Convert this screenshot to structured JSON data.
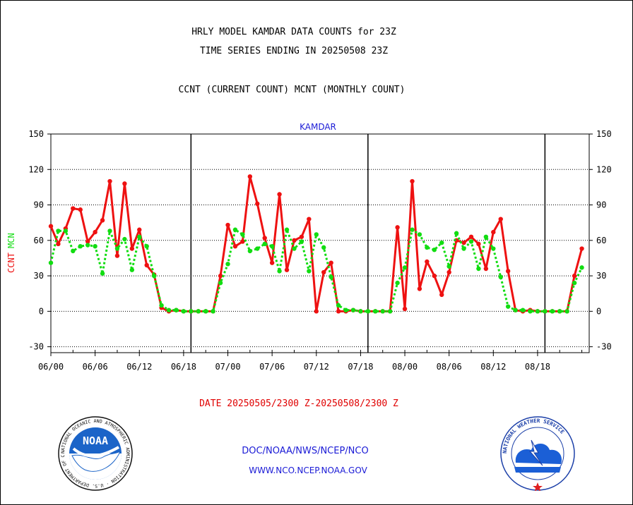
{
  "header": {
    "title_line1": "HRLY MODEL KAMDAR DATA COUNTS for 23Z",
    "title_line2": "TIME SERIES ENDING IN 20250508 23Z",
    "legend_line": "CCNT (CURRENT COUNT) MCNT (MONTHLY COUNT)"
  },
  "footer": {
    "date_range": "DATE 20250505/2300 Z-20250508/2300 Z",
    "org_path": "DOC/NOAA/NWS/NCEP/NCO",
    "website": "WWW.NCO.NCEP.NOAA.GOV"
  },
  "logos": {
    "noaa_text": "NOAA",
    "noaa_ring": "NATIONAL OCEANIC AND ATMOSPHERIC ADMINISTRATION · U.S. DEPARTMENT OF COMMERCE",
    "nws_ring": "NATIONAL WEATHER SERVICE"
  },
  "colors": {
    "ccnt": "#ee1111",
    "mcnt": "#11dd11",
    "station": "#1a1ad6",
    "axis": "#000000"
  },
  "chart_data": {
    "type": "line",
    "station_label": "KAMDAR",
    "ylabel_ccnt": "CCNT",
    "ylabel_mcnt": "MCNT",
    "ylim": [
      -35,
      150
    ],
    "yticks": [
      -30,
      0,
      30,
      60,
      90,
      120,
      150
    ],
    "grid": true,
    "xlim": [
      0,
      73
    ],
    "x_tick_labels": [
      "06/00",
      "06/06",
      "06/12",
      "06/18",
      "07/00",
      "07/06",
      "07/12",
      "07/18",
      "08/00",
      "08/06",
      "08/12",
      "08/18"
    ],
    "x_tick_hours": [
      0,
      6,
      12,
      18,
      24,
      30,
      36,
      42,
      48,
      54,
      60,
      66
    ],
    "day_boundaries": [
      19,
      43,
      67
    ],
    "x_hours": [
      0,
      1,
      2,
      3,
      4,
      5,
      6,
      7,
      8,
      9,
      10,
      11,
      12,
      13,
      14,
      15,
      16,
      17,
      18,
      19,
      20,
      21,
      22,
      23,
      24,
      25,
      26,
      27,
      28,
      29,
      30,
      31,
      32,
      33,
      34,
      35,
      36,
      37,
      38,
      39,
      40,
      41,
      42,
      43,
      44,
      45,
      46,
      47,
      48,
      49,
      50,
      51,
      52,
      53,
      54,
      55,
      56,
      57,
      58,
      59,
      60,
      61,
      62,
      63,
      64,
      65,
      66,
      67,
      68,
      69,
      70,
      71,
      72
    ],
    "series": [
      {
        "name": "CCNT",
        "values": [
          72,
          57,
          70,
          87,
          86,
          59,
          67,
          77,
          110,
          47,
          108,
          53,
          69,
          39,
          31,
          3,
          0,
          1,
          0,
          0,
          0,
          0,
          0,
          30,
          73,
          55,
          59,
          114,
          91,
          62,
          41,
          99,
          35,
          60,
          63,
          78,
          0,
          33,
          41,
          0,
          0,
          1,
          0,
          0,
          0,
          0,
          0,
          71,
          2,
          110,
          19,
          42,
          30,
          14,
          33,
          60,
          58,
          63,
          57,
          36,
          67,
          78,
          34,
          1,
          0,
          1,
          0,
          0,
          0,
          0,
          0,
          30,
          53
        ]
      },
      {
        "name": "MCNT",
        "values": [
          41,
          68,
          68,
          51,
          55,
          56,
          55,
          32,
          68,
          53,
          61,
          35,
          63,
          55,
          30,
          5,
          1,
          1,
          0,
          0,
          0,
          0,
          0,
          24,
          40,
          69,
          65,
          51,
          53,
          57,
          55,
          34,
          69,
          53,
          59,
          34,
          65,
          54,
          29,
          5,
          1,
          1,
          0,
          0,
          0,
          0,
          0,
          24,
          37,
          69,
          65,
          54,
          52,
          58,
          38,
          66,
          53,
          59,
          36,
          63,
          53,
          29,
          4,
          1,
          1,
          0,
          0,
          0,
          0,
          0,
          0,
          24,
          37
        ]
      }
    ]
  }
}
